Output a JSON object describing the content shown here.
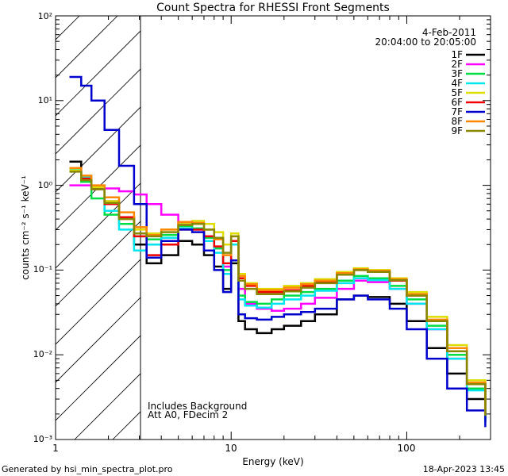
{
  "chart_data": {
    "type": "line",
    "title": "Count Spectra for RHESSI Front Segments",
    "xlabel": "Energy (keV)",
    "ylabel": "counts cm⁻² s⁻¹ keV⁻¹",
    "xscale": "log",
    "yscale": "log",
    "xlim": [
      1,
      300
    ],
    "ylim": [
      0.001,
      100
    ],
    "x_tick_labels": [
      "1",
      "10",
      "100"
    ],
    "y_tick_labels": [
      "10⁻³",
      "10⁻²",
      "10⁻¹",
      "10⁰",
      "10¹",
      "10²"
    ],
    "shaded_region": {
      "type": "hatched",
      "x_range": [
        1,
        3
      ],
      "meaning": "excluded low-energy range"
    },
    "legend": {
      "placement": "top-right",
      "date": "4-Feb-2011",
      "time_range": "20:04:00 to 20:05:00"
    },
    "annotations": [
      "Includes Background",
      "Att A0, FDecim 2"
    ],
    "footer_left": "Generated by hsi_min_spectra_plot.pro",
    "footer_right": "18-Apr-2023 13:45",
    "series": [
      {
        "name": "1F",
        "color": "#000000",
        "x": [
          1.2,
          1.4,
          1.6,
          1.9,
          2.3,
          2.8,
          3.3,
          4,
          5,
          6,
          7,
          8,
          9,
          10,
          11,
          12,
          14,
          17,
          20,
          25,
          30,
          40,
          50,
          60,
          80,
          100,
          130,
          170,
          220,
          280
        ],
        "y": [
          1.9,
          1.2,
          0.95,
          0.65,
          0.42,
          0.2,
          0.12,
          0.15,
          0.22,
          0.2,
          0.15,
          0.11,
          0.06,
          0.12,
          0.025,
          0.02,
          0.018,
          0.02,
          0.022,
          0.025,
          0.03,
          0.045,
          0.05,
          0.048,
          0.04,
          0.025,
          0.012,
          0.006,
          0.003,
          0.0016
        ]
      },
      {
        "name": "2F",
        "color": "#ff00ff",
        "x": [
          1.2,
          1.4,
          1.6,
          1.9,
          2.3,
          2.8,
          3.3,
          4,
          5,
          6,
          7,
          8,
          9,
          10,
          11,
          12,
          14,
          17,
          20,
          25,
          30,
          40,
          50,
          60,
          80,
          100,
          130,
          170,
          220,
          280
        ],
        "y": [
          1.0,
          1.0,
          0.98,
          0.92,
          0.85,
          0.78,
          0.6,
          0.45,
          0.35,
          0.3,
          0.25,
          0.18,
          0.11,
          0.2,
          0.06,
          0.04,
          0.035,
          0.033,
          0.035,
          0.04,
          0.047,
          0.06,
          0.075,
          0.072,
          0.06,
          0.04,
          0.02,
          0.009,
          0.004,
          0.0018
        ]
      },
      {
        "name": "3F",
        "color": "#00dd44",
        "x": [
          1.2,
          1.4,
          1.6,
          1.9,
          2.3,
          2.8,
          3.3,
          4,
          5,
          6,
          7,
          8,
          9,
          10,
          11,
          12,
          14,
          17,
          20,
          25,
          30,
          40,
          50,
          60,
          80,
          100,
          130,
          170,
          220,
          280
        ],
        "y": [
          1.5,
          1.1,
          0.7,
          0.45,
          0.35,
          0.25,
          0.23,
          0.26,
          0.33,
          0.31,
          0.24,
          0.18,
          0.1,
          0.22,
          0.05,
          0.042,
          0.04,
          0.045,
          0.05,
          0.055,
          0.06,
          0.075,
          0.085,
          0.08,
          0.065,
          0.045,
          0.022,
          0.01,
          0.004,
          0.0017
        ]
      },
      {
        "name": "4F",
        "color": "#00e5ee",
        "x": [
          1.2,
          1.4,
          1.6,
          1.9,
          2.3,
          2.8,
          3.3,
          4,
          5,
          6,
          7,
          8,
          9,
          10,
          11,
          12,
          14,
          17,
          20,
          25,
          30,
          40,
          50,
          60,
          80,
          100,
          130,
          170,
          220,
          280
        ],
        "y": [
          1.55,
          1.25,
          0.9,
          0.5,
          0.3,
          0.17,
          0.2,
          0.24,
          0.31,
          0.3,
          0.22,
          0.16,
          0.09,
          0.2,
          0.045,
          0.038,
          0.036,
          0.04,
          0.045,
          0.05,
          0.057,
          0.07,
          0.08,
          0.076,
          0.06,
          0.04,
          0.02,
          0.009,
          0.0038,
          0.0016
        ]
      },
      {
        "name": "5F",
        "color": "#dddd00",
        "x": [
          1.2,
          1.4,
          1.6,
          1.9,
          2.3,
          2.8,
          3.3,
          4,
          5,
          6,
          7,
          8,
          9,
          10,
          11,
          12,
          14,
          17,
          20,
          25,
          30,
          40,
          50,
          60,
          80,
          100,
          130,
          170,
          220,
          280
        ],
        "y": [
          1.5,
          1.2,
          0.95,
          0.65,
          0.42,
          0.3,
          0.27,
          0.3,
          0.36,
          0.38,
          0.35,
          0.28,
          0.2,
          0.27,
          0.09,
          0.07,
          0.06,
          0.06,
          0.065,
          0.07,
          0.078,
          0.095,
          0.105,
          0.1,
          0.08,
          0.055,
          0.028,
          0.013,
          0.005,
          0.0022
        ]
      },
      {
        "name": "6F",
        "color": "#ee0000",
        "x": [
          1.2,
          1.4,
          1.6,
          1.9,
          2.3,
          2.8,
          3.3,
          4,
          5,
          6,
          7,
          8,
          9,
          10,
          11,
          12,
          14,
          17,
          20,
          25,
          30,
          40,
          50,
          60,
          80,
          100,
          130,
          170,
          220,
          280
        ],
        "y": [
          1.6,
          1.2,
          0.9,
          0.6,
          0.42,
          0.25,
          0.15,
          0.2,
          0.3,
          0.3,
          0.25,
          0.19,
          0.12,
          0.22,
          0.08,
          0.065,
          0.055,
          0.055,
          0.058,
          0.065,
          0.072,
          0.09,
          0.1,
          0.095,
          0.075,
          0.05,
          0.025,
          0.011,
          0.0045,
          0.002
        ]
      },
      {
        "name": "7F",
        "color": "#0000cc",
        "x": [
          1.2,
          1.4,
          1.6,
          1.9,
          2.3,
          2.8,
          3.3,
          4,
          5,
          6,
          7,
          8,
          9,
          10,
          11,
          12,
          14,
          17,
          20,
          25,
          30,
          40,
          50,
          60,
          80,
          100,
          130,
          170,
          220,
          280
        ],
        "y": [
          19,
          15,
          10,
          4.5,
          1.7,
          0.6,
          0.14,
          0.22,
          0.3,
          0.28,
          0.17,
          0.1,
          0.055,
          0.13,
          0.03,
          0.027,
          0.026,
          0.028,
          0.03,
          0.032,
          0.035,
          0.045,
          0.05,
          0.045,
          0.035,
          0.02,
          0.009,
          0.004,
          0.0022,
          0.0014
        ]
      },
      {
        "name": "8F",
        "color": "#ff8800",
        "x": [
          1.2,
          1.4,
          1.6,
          1.9,
          2.3,
          2.8,
          3.3,
          4,
          5,
          6,
          7,
          8,
          9,
          10,
          11,
          12,
          14,
          17,
          20,
          25,
          30,
          40,
          50,
          60,
          80,
          100,
          130,
          170,
          220,
          280
        ],
        "y": [
          1.6,
          1.3,
          1.0,
          0.72,
          0.48,
          0.32,
          0.26,
          0.3,
          0.37,
          0.36,
          0.3,
          0.23,
          0.15,
          0.25,
          0.085,
          0.068,
          0.058,
          0.058,
          0.062,
          0.068,
          0.075,
          0.092,
          0.102,
          0.098,
          0.078,
          0.052,
          0.026,
          0.012,
          0.0047,
          0.002
        ]
      },
      {
        "name": "9F",
        "color": "#888800",
        "x": [
          1.2,
          1.4,
          1.6,
          1.9,
          2.3,
          2.8,
          3.3,
          4,
          5,
          6,
          7,
          8,
          9,
          10,
          11,
          12,
          14,
          17,
          20,
          25,
          30,
          40,
          50,
          60,
          80,
          100,
          130,
          170,
          220,
          280
        ],
        "y": [
          1.45,
          1.15,
          0.9,
          0.62,
          0.4,
          0.27,
          0.25,
          0.28,
          0.34,
          0.35,
          0.3,
          0.24,
          0.16,
          0.25,
          0.075,
          0.06,
          0.052,
          0.052,
          0.056,
          0.062,
          0.07,
          0.088,
          0.1,
          0.095,
          0.076,
          0.05,
          0.025,
          0.011,
          0.0045,
          0.0019
        ]
      }
    ]
  }
}
